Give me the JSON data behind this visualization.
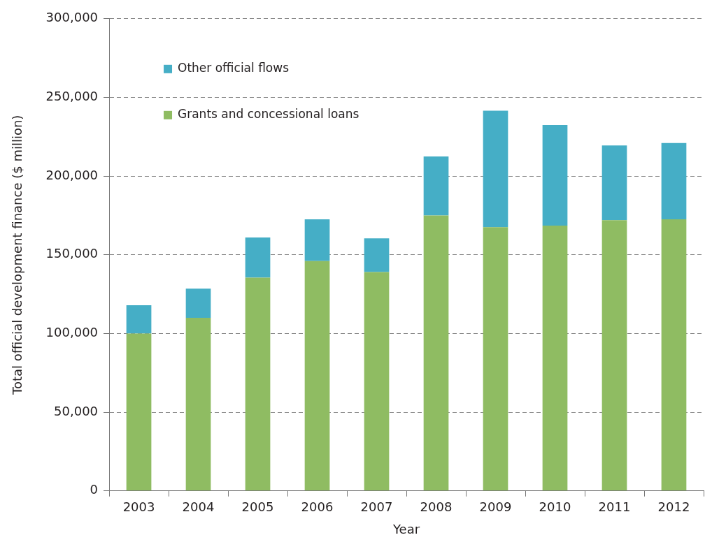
{
  "chart_data": {
    "type": "bar",
    "xlabel": "Year",
    "ylabel": "Total official development finance ($ million)",
    "categories": [
      "2003",
      "2004",
      "2005",
      "2006",
      "2007",
      "2008",
      "2009",
      "2010",
      "2011",
      "2012"
    ],
    "stacked": true,
    "ylim": [
      0,
      300000
    ],
    "yticks": [
      {
        "value": 0,
        "label": "0"
      },
      {
        "value": 50000,
        "label": "50,000"
      },
      {
        "value": 100000,
        "label": "100,000"
      },
      {
        "value": 150000,
        "label": "150,000"
      },
      {
        "value": 200000,
        "label": "200,000"
      },
      {
        "value": 250000,
        "label": "250,000"
      },
      {
        "value": 300000,
        "label": "300,000"
      }
    ],
    "grid": "y",
    "legend": "top left",
    "series": [
      {
        "name": "Grants and concessional loans",
        "color": "#8fbc62",
        "values": [
          100000,
          110000,
          135500,
          146000,
          139000,
          175000,
          167500,
          168500,
          172000,
          172500
        ]
      },
      {
        "name": "Other official flows",
        "color": "#45aec6",
        "values": [
          18000,
          18500,
          25500,
          26500,
          21500,
          37500,
          74000,
          64000,
          47500,
          48500
        ]
      }
    ]
  }
}
